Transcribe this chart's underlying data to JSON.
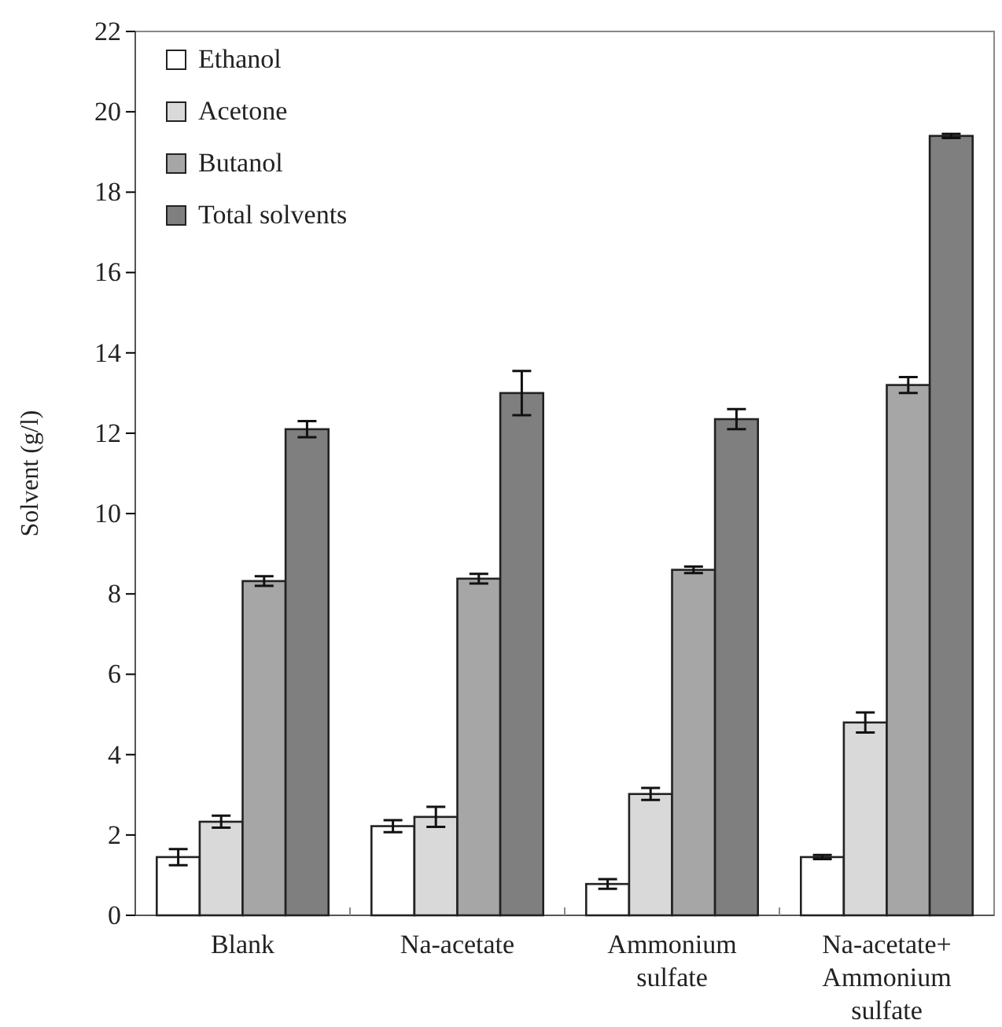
{
  "chart_data": {
    "type": "bar",
    "ylabel": "Solvent (g/l)",
    "categories": [
      "Blank",
      "Na-acetate",
      "Ammonium sulfate",
      "Na-acetate+ Ammonium sulfate"
    ],
    "series": [
      {
        "name": "Ethanol",
        "color": "#ffffff",
        "values": [
          1.45,
          2.22,
          0.78,
          1.45
        ],
        "errors": [
          0.2,
          0.15,
          0.12,
          0.05
        ]
      },
      {
        "name": "Acetone",
        "color": "#d9d9d9",
        "values": [
          2.33,
          2.45,
          3.02,
          4.8
        ],
        "errors": [
          0.15,
          0.25,
          0.15,
          0.25
        ]
      },
      {
        "name": "Butanol",
        "color": "#a6a6a6",
        "values": [
          8.32,
          8.38,
          8.6,
          13.2
        ],
        "errors": [
          0.12,
          0.12,
          0.08,
          0.2
        ]
      },
      {
        "name": "Total solvents",
        "color": "#7f7f7f",
        "values": [
          12.1,
          13.0,
          12.35,
          19.4
        ],
        "errors": [
          0.2,
          0.55,
          0.25,
          0.05
        ]
      }
    ],
    "ylim": [
      0,
      22
    ],
    "yticks": [
      0,
      2,
      4,
      6,
      8,
      10,
      12,
      14,
      16,
      18,
      20,
      22
    ],
    "grid": false,
    "legend": "top left"
  }
}
